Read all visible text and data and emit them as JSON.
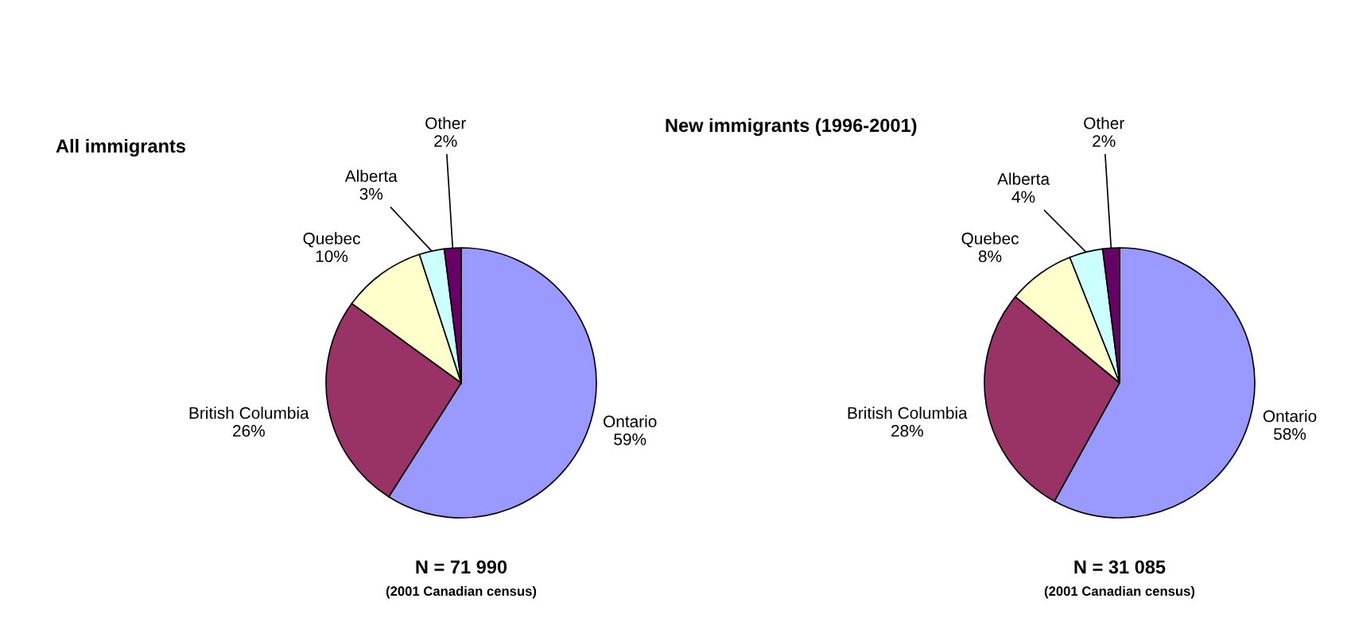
{
  "chart_data": [
    {
      "type": "pie",
      "title": "All immigrants",
      "categories": [
        "Ontario",
        "British Columbia",
        "Quebec",
        "Alberta",
        "Other"
      ],
      "values": [
        59,
        26,
        10,
        3,
        2
      ],
      "value_labels": [
        "59%",
        "26%",
        "10%",
        "3%",
        "2%"
      ],
      "colors": [
        "#9999ff",
        "#993366",
        "#ffffcc",
        "#ccffff",
        "#660066"
      ],
      "annotations": [
        "N = 71 990",
        "(2001 Canadian census)"
      ]
    },
    {
      "type": "pie",
      "title": "New immigrants (1996-2001)",
      "categories": [
        "Ontario",
        "British Columbia",
        "Quebec",
        "Alberta",
        "Other"
      ],
      "values": [
        58,
        28,
        8,
        4,
        2
      ],
      "value_labels": [
        "58%",
        "28%",
        "8%",
        "4%",
        "2%"
      ],
      "colors": [
        "#9999ff",
        "#993366",
        "#ffffcc",
        "#ccffff",
        "#660066"
      ],
      "annotations": [
        "N = 31 085",
        "(2001 Canadian census)"
      ]
    }
  ]
}
